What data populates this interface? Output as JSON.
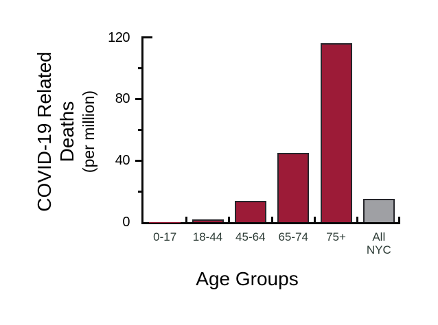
{
  "chart_data": {
    "type": "bar",
    "title": "",
    "xlabel": "Age Groups",
    "ylabel_lines": [
      "COVID-19 Related",
      "Deaths"
    ],
    "ylabel_sub": "(per million)",
    "categories": [
      "0-17",
      "18-44",
      "45-64",
      "65-74",
      "75+",
      "All NYC"
    ],
    "categories_display": [
      "0-17",
      "18-44",
      "45-64",
      "65-74",
      "75+",
      "All\nNYC"
    ],
    "values": [
      0.2,
      2,
      14,
      45,
      116,
      15
    ],
    "series_name": "COVID-19 related deaths per million",
    "bar_colors": [
      "#9c1b37",
      "#9c1b37",
      "#9c1b37",
      "#9c1b37",
      "#9c1b37",
      "#9fa0a4"
    ],
    "ylim": [
      0,
      120
    ],
    "yticks_major": [
      0,
      40,
      80,
      120
    ],
    "yticks_minor": [
      20,
      60,
      100
    ],
    "ytick_labels": [
      "0",
      "40",
      "80",
      "120"
    ],
    "grid": false,
    "legend": null,
    "colors": {
      "accent_bar": "#9c1b37",
      "neutral_bar": "#9fa0a4",
      "axis": "#0a0a0a",
      "x_label_text": "#2c3b35",
      "y_label_text": "#000000"
    }
  }
}
